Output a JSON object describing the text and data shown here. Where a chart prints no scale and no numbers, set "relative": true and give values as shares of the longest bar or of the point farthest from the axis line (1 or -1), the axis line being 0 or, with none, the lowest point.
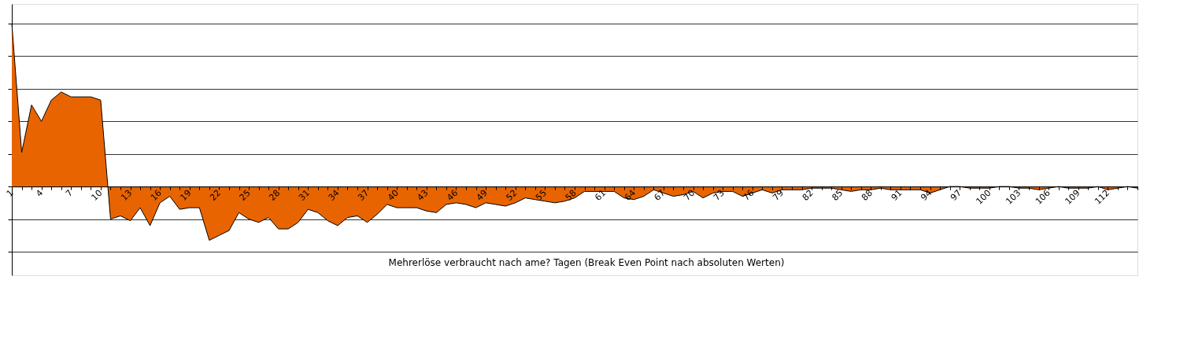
{
  "chart_data": {
    "type": "area",
    "relative": true,
    "grid": "y",
    "color": "#e86400",
    "annotations": [
      "Mehrerlöse verbraucht nach  ame? Tagen (Break Even Point nach absoluten Werten)"
    ],
    "categories": [
      "1",
      null,
      null,
      "4",
      null,
      null,
      "7",
      null,
      null,
      "10",
      null,
      null,
      "13",
      null,
      null,
      "16",
      null,
      null,
      "19",
      null,
      null,
      "22",
      null,
      null,
      "25",
      null,
      null,
      "28",
      null,
      null,
      "31",
      null,
      null,
      "34",
      null,
      null,
      "37",
      null,
      null,
      "40",
      null,
      null,
      "43",
      null,
      null,
      "46",
      null,
      null,
      "49",
      null,
      null,
      "52",
      null,
      null,
      "55",
      null,
      null,
      "58",
      null,
      null,
      "61",
      null,
      null,
      "64",
      null,
      null,
      "67",
      null,
      null,
      "70",
      null,
      null,
      "73",
      null,
      null,
      "76",
      null,
      null,
      "79",
      null,
      null,
      "82",
      null,
      null,
      "85",
      null,
      null,
      "88",
      null,
      null,
      "91",
      null,
      null,
      "94",
      null,
      null,
      "97",
      null,
      null,
      "100",
      null,
      null,
      "103",
      null,
      null,
      "106",
      null,
      null,
      "109",
      null,
      null,
      "112",
      null,
      null,
      null
    ],
    "values": [
      1.0,
      0.21,
      0.5,
      0.4,
      0.53,
      0.58,
      0.55,
      0.55,
      0.55,
      0.53,
      -0.2,
      -0.18,
      -0.21,
      -0.13,
      -0.24,
      -0.1,
      -0.06,
      -0.14,
      -0.13,
      -0.13,
      -0.33,
      -0.3,
      -0.27,
      -0.16,
      -0.2,
      -0.22,
      -0.19,
      -0.26,
      -0.26,
      -0.22,
      -0.14,
      -0.16,
      -0.21,
      -0.24,
      -0.19,
      -0.18,
      -0.22,
      -0.17,
      -0.11,
      -0.13,
      -0.13,
      -0.13,
      -0.15,
      -0.16,
      -0.11,
      -0.1,
      -0.11,
      -0.13,
      -0.1,
      -0.11,
      -0.12,
      -0.1,
      -0.07,
      -0.08,
      -0.09,
      -0.1,
      -0.09,
      -0.07,
      -0.03,
      -0.03,
      -0.03,
      -0.03,
      -0.07,
      -0.08,
      -0.06,
      -0.02,
      -0.04,
      -0.06,
      -0.05,
      -0.03,
      -0.07,
      -0.04,
      -0.03,
      -0.03,
      -0.06,
      -0.04,
      -0.02,
      -0.04,
      -0.02,
      -0.02,
      -0.02,
      -0.01,
      -0.01,
      -0.01,
      -0.02,
      -0.03,
      -0.02,
      -0.02,
      -0.01,
      -0.02,
      -0.02,
      -0.02,
      -0.02,
      -0.04,
      -0.02,
      0.0,
      0.0,
      -0.01,
      -0.01,
      -0.01,
      0.0,
      0.0,
      -0.01,
      -0.01,
      -0.02,
      -0.01,
      0.0,
      -0.01,
      -0.01,
      -0.01,
      0.0,
      -0.02,
      -0.01,
      0.0,
      -0.01
    ]
  }
}
